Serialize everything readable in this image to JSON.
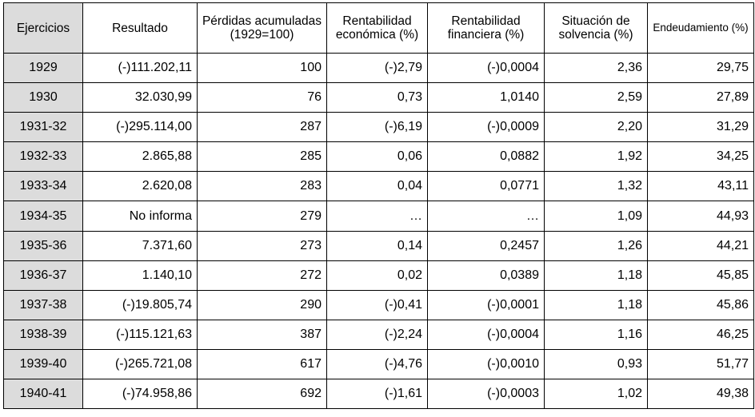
{
  "table": {
    "headers": [
      "Ejercicios",
      "Resultado",
      "Pérdidas acumuladas (1929=100)",
      "Rentabilidad económica (%)",
      "Rentabilidad financiera (%)",
      "Situación de solvencia (%)",
      "Endeudamiento (%)"
    ],
    "rows": [
      [
        "1929",
        "(-)111.202,11",
        "100",
        "(-)2,79",
        "(-)0,0004",
        "2,36",
        "29,75"
      ],
      [
        "1930",
        "32.030,99",
        "76",
        "0,73",
        "1,0140",
        "2,59",
        "27,89"
      ],
      [
        "1931-32",
        "(-)295.114,00",
        "287",
        "(-)6,19",
        "(-)0,0009",
        "2,20",
        "31,29"
      ],
      [
        "1932-33",
        "2.865,88",
        "285",
        "0,06",
        "0,0882",
        "1,92",
        "34,25"
      ],
      [
        "1933-34",
        "2.620,08",
        "283",
        "0,04",
        "0,0771",
        "1,32",
        "43,11"
      ],
      [
        "1934-35",
        "No informa",
        "279",
        "…",
        "…",
        "1,09",
        "44,93"
      ],
      [
        "1935-36",
        "7.371,60",
        "273",
        "0,14",
        "0,2457",
        "1,26",
        "44,21"
      ],
      [
        "1936-37",
        "1.140,10",
        "272",
        "0,02",
        "0,0389",
        "1,18",
        "45,85"
      ],
      [
        "1937-38",
        "(-)19.805,74",
        "290",
        "(-)0,41",
        "(-)0,0001",
        "1,18",
        "45,86"
      ],
      [
        "1938-39",
        "(-)115.121,63",
        "387",
        "(-)2,24",
        "(-)0,0004",
        "1,16",
        "46,25"
      ],
      [
        "1939-40",
        "(-)265.721,08",
        "617",
        "(-)4,76",
        "(-)0,0010",
        "0,93",
        "51,77"
      ],
      [
        "1940-41",
        "(-)74.958,86",
        "692",
        "(-)1,61",
        "(-)0,0003",
        "1,02",
        "49,38"
      ]
    ]
  }
}
